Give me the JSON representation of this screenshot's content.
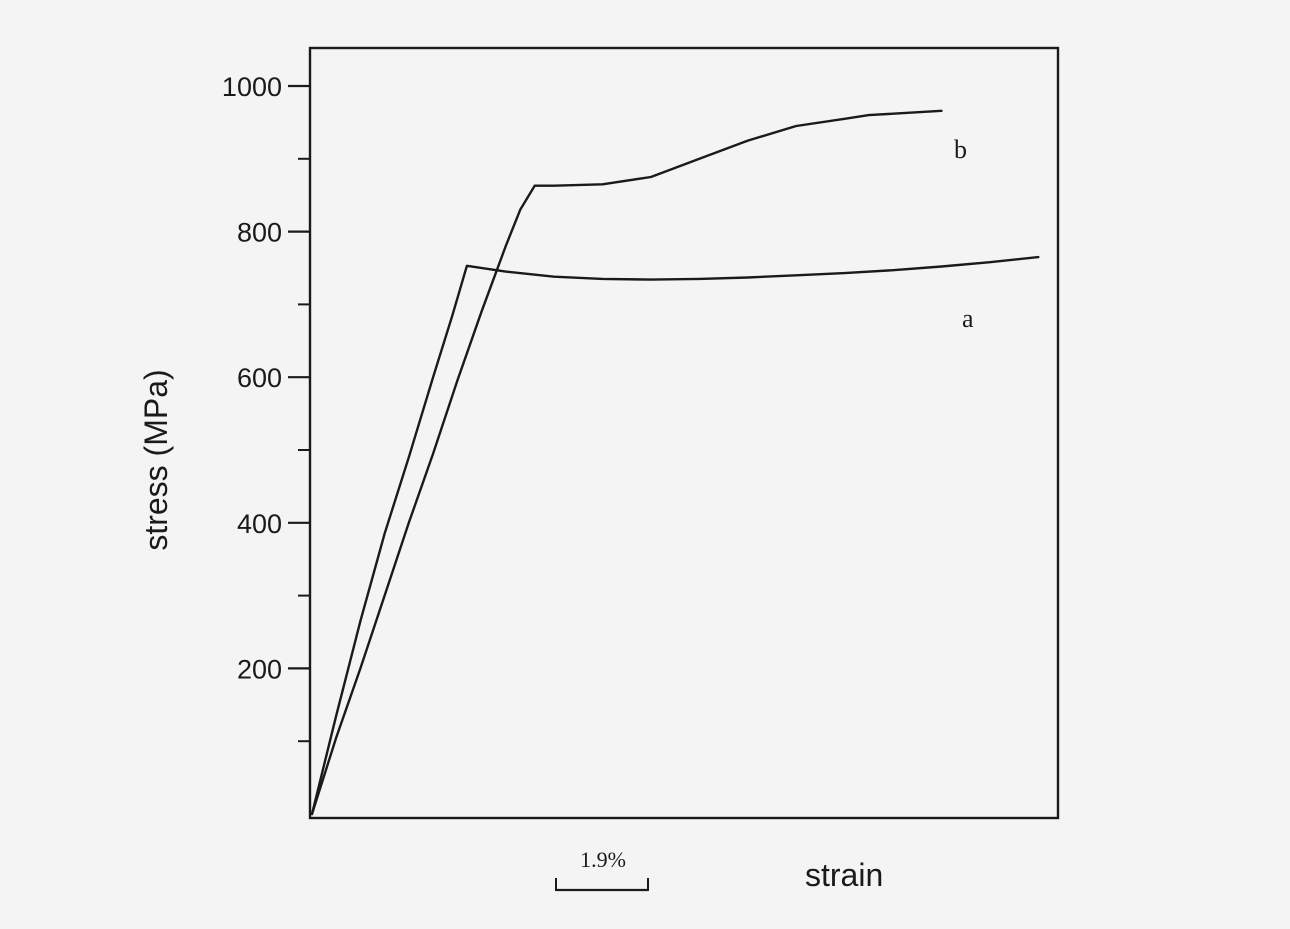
{
  "chart_data": {
    "type": "line",
    "title": "",
    "xlabel": "strain",
    "ylabel": "stress (MPa)",
    "x_units": "strain (%)",
    "ylim": [
      0,
      1080
    ],
    "xlim": [
      0,
      15.5
    ],
    "y_ticks": [
      200,
      400,
      600,
      800,
      1000
    ],
    "y_minor_ticks": [
      100,
      300,
      500,
      700,
      900
    ],
    "x_scale_bar": {
      "label": "1.9%",
      "value": 1.9
    },
    "grid": false,
    "legend": "none",
    "series": [
      {
        "name": "a",
        "x": [
          0,
          0.5,
          1.0,
          1.5,
          2.0,
          2.5,
          2.9,
          3.2,
          4.0,
          5.0,
          6.0,
          7.0,
          8.0,
          9.0,
          10.0,
          11.0,
          12.0,
          13.0,
          14.0,
          15.0
        ],
        "y": [
          0,
          135,
          265,
          385,
          490,
          600,
          685,
          753,
          745,
          738,
          735,
          734,
          735,
          737,
          740,
          743,
          747,
          752,
          758,
          765
        ]
      },
      {
        "name": "b",
        "x": [
          0,
          0.5,
          1.0,
          1.5,
          2.0,
          2.5,
          3.0,
          3.5,
          4.0,
          4.3,
          4.6,
          5.0,
          6.0,
          7.0,
          8.0,
          9.0,
          10.0,
          11.0,
          11.5,
          12.0,
          13.0
        ],
        "y": [
          0,
          105,
          200,
          300,
          400,
          495,
          595,
          690,
          780,
          830,
          863,
          863,
          865,
          875,
          900,
          925,
          945,
          955,
          960,
          962,
          966
        ]
      }
    ]
  }
}
